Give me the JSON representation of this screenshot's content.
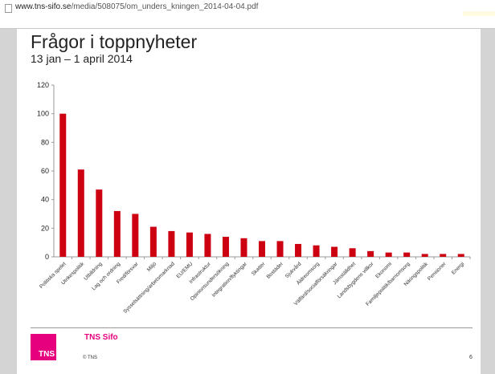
{
  "browser": {
    "url_host": "www.tns-sifo.se",
    "url_path": "/media/508075/om_unders_kningen_2014-04-04.pdf"
  },
  "slide": {
    "title": "Frågor i toppnyheter",
    "subtitle": "13 jan – 1 april 2014",
    "brand": "TNS Sifo",
    "logo_text": "TNS",
    "copyright": "© TNS",
    "page_number": "6",
    "brand_color": "#e6007e"
  },
  "chart_data": {
    "type": "bar",
    "title": "Frågor i toppnyheter",
    "subtitle": "13 jan – 1 april 2014",
    "xlabel": "",
    "ylabel": "",
    "ylim": [
      0,
      120
    ],
    "yticks": [
      0,
      20,
      40,
      60,
      80,
      100,
      120
    ],
    "grid": false,
    "bar_color": "#cc0011",
    "categories": [
      "Politiska spelet",
      "Utrikespolitik",
      "Utbildning",
      "Lag och ordning",
      "Fred/försvar",
      "Miljö",
      "Sysselsättning/arbetsmarknad",
      "EU/EMU",
      "Infrastruktur",
      "Opinionsundersökning",
      "Integration/flyktingar",
      "Skatter",
      "Bostäder",
      "Sjukvård",
      "Äldreomsorg",
      "Välfärd/socialförsäkringar",
      "Jämställdhet",
      "Landsbygdens villkor",
      "Ekonomi",
      "Familjepolitik/barnomsorg",
      "Näringspolitik",
      "Pensioner",
      "Energi"
    ],
    "values": [
      100,
      61,
      47,
      32,
      30,
      21,
      18,
      17,
      16,
      14,
      13,
      11,
      11,
      9,
      8,
      7,
      6,
      4,
      3,
      3,
      2,
      2,
      2
    ]
  }
}
